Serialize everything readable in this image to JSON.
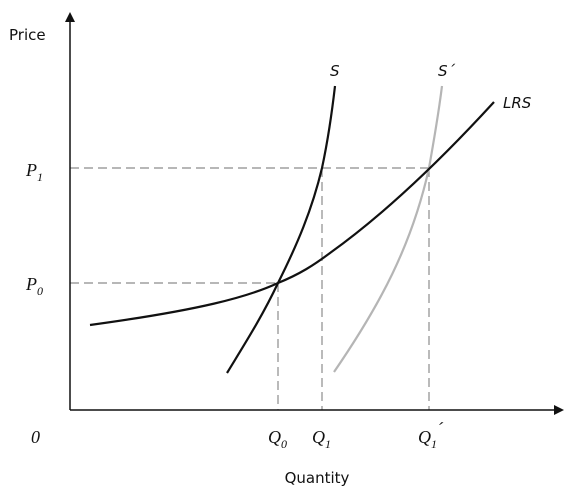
{
  "axes": {
    "y_title": "Price",
    "x_title": "Quantity",
    "origin_label": "0"
  },
  "price_labels": [
    {
      "id": "P1",
      "main": "P",
      "sub": "1"
    },
    {
      "id": "P0",
      "main": "P",
      "sub": "0"
    }
  ],
  "quantity_labels": [
    {
      "id": "Q0",
      "main": "Q",
      "sub": "0",
      "prime": ""
    },
    {
      "id": "Q1",
      "main": "Q",
      "sub": "1",
      "prime": ""
    },
    {
      "id": "Q1p",
      "main": "Q",
      "sub": "1",
      "prime": "´"
    }
  ],
  "curves": {
    "S": {
      "label": "S",
      "color": "#111111"
    },
    "S_prime": {
      "label": "S´",
      "color": "#b5b5b5"
    },
    "LRS": {
      "label": "LRS",
      "color": "#111111"
    }
  },
  "guide_color": "#8c8c8c",
  "axis_color": "#111111"
}
